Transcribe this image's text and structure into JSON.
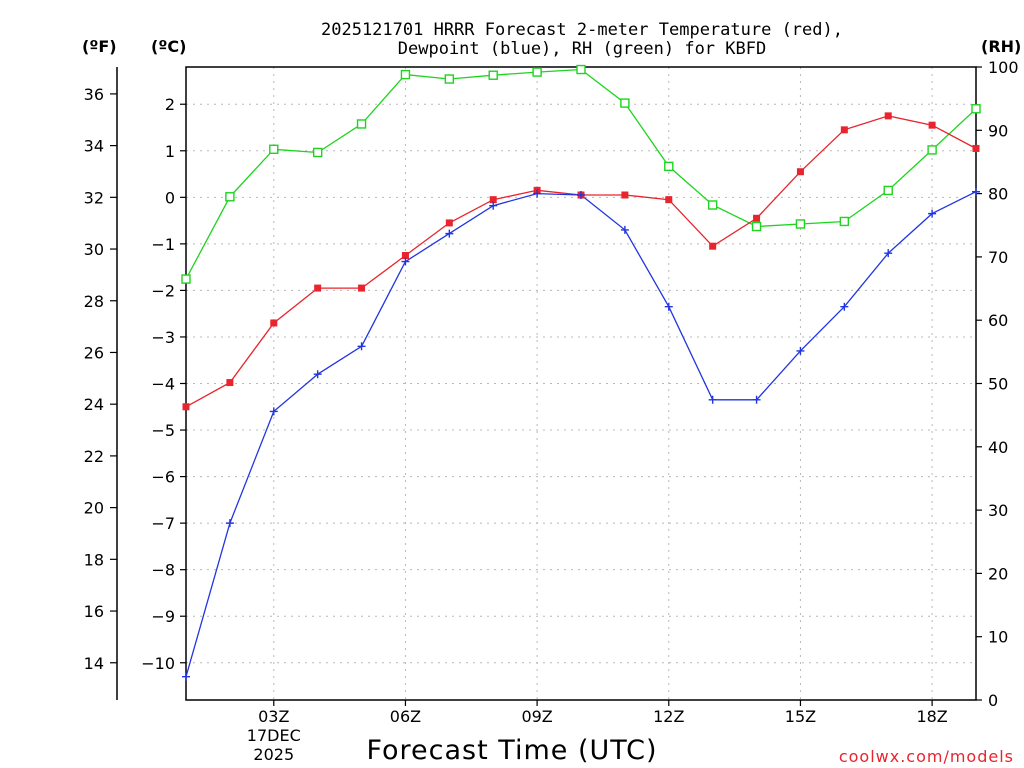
{
  "colors": {
    "temp": "#e8242e",
    "dewpoint": "#2236e0",
    "rh": "#1ed41e",
    "credit": "#e8242e"
  },
  "chart_data": {
    "type": "line",
    "title_line1": "2025121701 HRRR Forecast 2-meter Temperature (red),",
    "title_line2": "Dewpoint (blue), RH (green) for KBFD",
    "xlabel": "Forecast Time (UTC)",
    "x_hours": [
      1,
      2,
      3,
      4,
      5,
      6,
      7,
      8,
      9,
      10,
      11,
      12,
      13,
      14,
      15,
      16,
      17,
      18,
      19
    ],
    "x_ticks": [
      {
        "hour": 3,
        "label": "03Z",
        "sub1": "17DEC",
        "sub2": "2025"
      },
      {
        "hour": 6,
        "label": "06Z"
      },
      {
        "hour": 9,
        "label": "09Z"
      },
      {
        "hour": 12,
        "label": "12Z"
      },
      {
        "hour": 15,
        "label": "15Z"
      },
      {
        "hour": 18,
        "label": "18Z"
      }
    ],
    "xlim": [
      1,
      19
    ],
    "units": {
      "f": "(ºF)",
      "c": "(ºC)",
      "rh": "(RH)"
    },
    "celsius_axis": {
      "range": [
        -10.8,
        2.8
      ],
      "ticks": [
        2,
        1,
        0,
        -1,
        -2,
        -3,
        -4,
        -5,
        -6,
        -7,
        -8,
        -9,
        -10
      ],
      "tick_labels": [
        "2",
        "1",
        "0",
        "−1",
        "−2",
        "−3",
        "−4",
        "−5",
        "−6",
        "−7",
        "−8",
        "−9",
        "−10"
      ]
    },
    "fahrenheit_axis": {
      "ticks": [
        36,
        34,
        32,
        30,
        28,
        26,
        24,
        22,
        20,
        18,
        16,
        14
      ]
    },
    "rh_axis": {
      "range": [
        0,
        100
      ],
      "ticks": [
        0,
        10,
        20,
        30,
        40,
        50,
        60,
        70,
        80,
        90,
        100
      ]
    },
    "series": [
      {
        "name": "Temperature",
        "units": "C",
        "values": [
          -4.5,
          -3.98,
          -2.7,
          -1.95,
          -1.95,
          -1.25,
          -0.55,
          -0.05,
          0.15,
          0.05,
          0.05,
          -0.05,
          -1.05,
          -0.45,
          0.55,
          1.45,
          1.75,
          1.55,
          1.05
        ]
      },
      {
        "name": "Dewpoint",
        "units": "C",
        "values": [
          -10.3,
          -7.0,
          -4.6,
          -3.8,
          -3.2,
          -1.38,
          -0.78,
          -0.18,
          0.08,
          0.05,
          -0.7,
          -2.35,
          -4.35,
          -4.35,
          -3.3,
          -2.35,
          -1.2,
          -0.35,
          0.12
        ]
      },
      {
        "name": "RH",
        "units": "%",
        "values": [
          66.5,
          79.5,
          87,
          86.5,
          91,
          98.8,
          98.1,
          98.7,
          99.2,
          99.6,
          94.3,
          84.3,
          78.2,
          74.8,
          75.2,
          75.6,
          80.5,
          86.9,
          93.4
        ]
      }
    ],
    "credit": "coolwx.com/models"
  }
}
